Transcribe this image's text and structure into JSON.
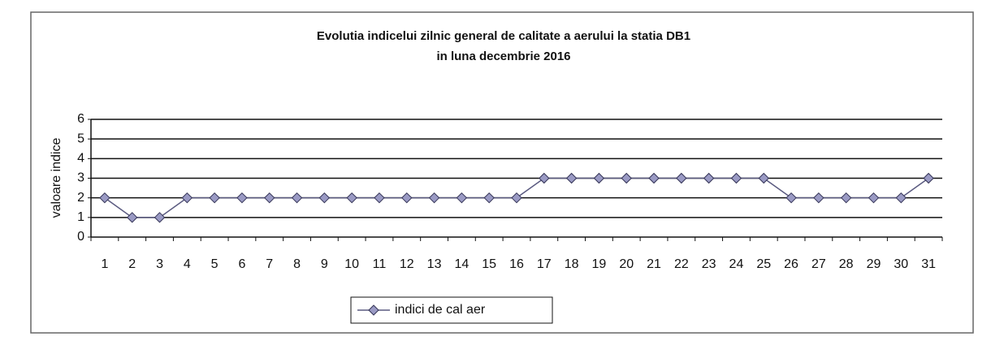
{
  "chart_data": {
    "type": "line",
    "title": "Evolutia indicelui zilnic general de calitate a aerului  la statia DB1",
    "subtitle": "in luna decembrie 2016",
    "y_label": "valoare indice",
    "categories": [
      "1",
      "2",
      "3",
      "4",
      "5",
      "6",
      "7",
      "8",
      "9",
      "10",
      "11",
      "12",
      "13",
      "14",
      "15",
      "16",
      "17",
      "18",
      "19",
      "20",
      "21",
      "22",
      "23",
      "24",
      "25",
      "26",
      "27",
      "28",
      "29",
      "30",
      "31"
    ],
    "series": [
      {
        "name": "indici de cal aer",
        "color": "#5a5a80",
        "values": [
          2,
          1,
          1,
          2,
          2,
          2,
          2,
          2,
          2,
          2,
          2,
          2,
          2,
          2,
          2,
          2,
          3,
          3,
          3,
          3,
          3,
          3,
          3,
          3,
          3,
          2,
          2,
          2,
          2,
          2,
          3
        ]
      }
    ],
    "ylim": [
      0,
      6
    ],
    "yticks": [
      0,
      1,
      2,
      3,
      4,
      5,
      6
    ],
    "grid": true,
    "legend": "bottom"
  }
}
